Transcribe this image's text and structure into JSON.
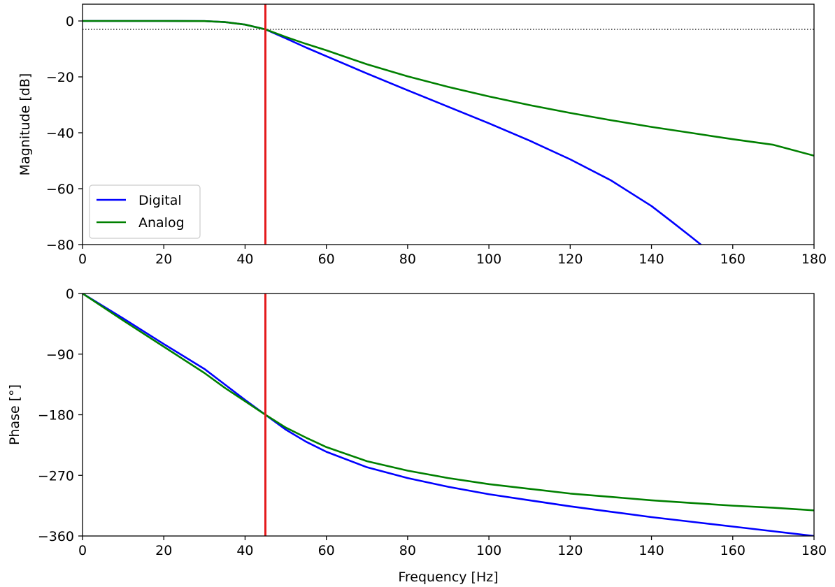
{
  "chart_data": [
    {
      "type": "line",
      "title": "",
      "xlabel": "",
      "ylabel": "Magnitude [dB]",
      "xlim": [
        0,
        180
      ],
      "ylim": [
        -80,
        6
      ],
      "xticks": [
        0,
        20,
        40,
        60,
        80,
        100,
        120,
        140,
        160,
        180
      ],
      "xtick_labels": [
        "0",
        "20",
        "40",
        "60",
        "80",
        "100",
        "120",
        "140",
        "160",
        "180"
      ],
      "yticks": [
        0,
        -20,
        -40,
        -60,
        -80
      ],
      "ytick_labels": [
        "0",
        "−20",
        "−40",
        "−60",
        "−80"
      ],
      "grid": false,
      "legend_position": "lower-left",
      "reference_lines": [
        {
          "orientation": "vertical",
          "x": 45,
          "color": "#e41a1c",
          "style": "solid"
        },
        {
          "orientation": "horizontal",
          "y": -3,
          "color": "#000000",
          "style": "dotted"
        }
      ],
      "series": [
        {
          "name": "Digital",
          "color": "#0000ff",
          "x": [
            0,
            10,
            20,
            30,
            35,
            40,
            45,
            50,
            55,
            60,
            70,
            80,
            90,
            100,
            110,
            120,
            130,
            140,
            145,
            150,
            153
          ],
          "y": [
            0,
            0,
            0,
            -0.05,
            -0.4,
            -1.3,
            -3,
            -6.2,
            -9.5,
            -12.6,
            -18.8,
            -24.8,
            -30.7,
            -36.6,
            -42.8,
            -49.5,
            -57,
            -66.2,
            -71.8,
            -77.5,
            -81
          ]
        },
        {
          "name": "Analog",
          "color": "#008000",
          "x": [
            0,
            10,
            20,
            30,
            35,
            40,
            45,
            50,
            55,
            60,
            70,
            80,
            90,
            100,
            110,
            120,
            130,
            140,
            150,
            160,
            170,
            180
          ],
          "y": [
            0,
            0,
            0,
            -0.05,
            -0.4,
            -1.3,
            -3,
            -5.7,
            -8.2,
            -10.5,
            -15.5,
            -19.8,
            -23.6,
            -27,
            -30.1,
            -32.9,
            -35.5,
            -37.9,
            -40.1,
            -42.3,
            -44.3,
            -48.2
          ]
        }
      ]
    },
    {
      "type": "line",
      "title": "",
      "xlabel": "Frequency [Hz]",
      "ylabel": "Phase [°]",
      "xlim": [
        0,
        180
      ],
      "ylim": [
        -360,
        0
      ],
      "xticks": [
        0,
        20,
        40,
        60,
        80,
        100,
        120,
        140,
        160,
        180
      ],
      "xtick_labels": [
        "0",
        "20",
        "40",
        "60",
        "80",
        "100",
        "120",
        "140",
        "160",
        "180"
      ],
      "yticks": [
        0,
        -90,
        -180,
        -270,
        -360
      ],
      "ytick_labels": [
        "0",
        "−90",
        "−180",
        "−270",
        "−360"
      ],
      "grid": false,
      "reference_lines": [
        {
          "orientation": "vertical",
          "x": 45,
          "color": "#e41a1c",
          "style": "solid"
        }
      ],
      "series": [
        {
          "name": "Digital",
          "color": "#0000ff",
          "x": [
            0,
            10,
            20,
            30,
            35,
            40,
            45,
            50,
            55,
            60,
            70,
            80,
            90,
            100,
            110,
            120,
            130,
            140,
            150,
            160,
            170,
            180
          ],
          "y": [
            0,
            -37,
            -75,
            -112,
            -135,
            -158,
            -180,
            -202,
            -220,
            -235,
            -258,
            -274,
            -287,
            -298,
            -307,
            -316,
            -324,
            -332,
            -339,
            -346,
            -353,
            -360
          ]
        },
        {
          "name": "Analog",
          "color": "#008000",
          "x": [
            0,
            10,
            20,
            30,
            35,
            40,
            45,
            50,
            55,
            60,
            70,
            80,
            90,
            100,
            110,
            120,
            130,
            140,
            150,
            160,
            170,
            180
          ],
          "y": [
            0,
            -40,
            -79,
            -118,
            -140,
            -160,
            -180,
            -199,
            -214,
            -228,
            -249,
            -263,
            -274,
            -283,
            -290,
            -297,
            -302,
            -307,
            -311,
            -315,
            -318,
            -322
          ]
        }
      ]
    }
  ]
}
